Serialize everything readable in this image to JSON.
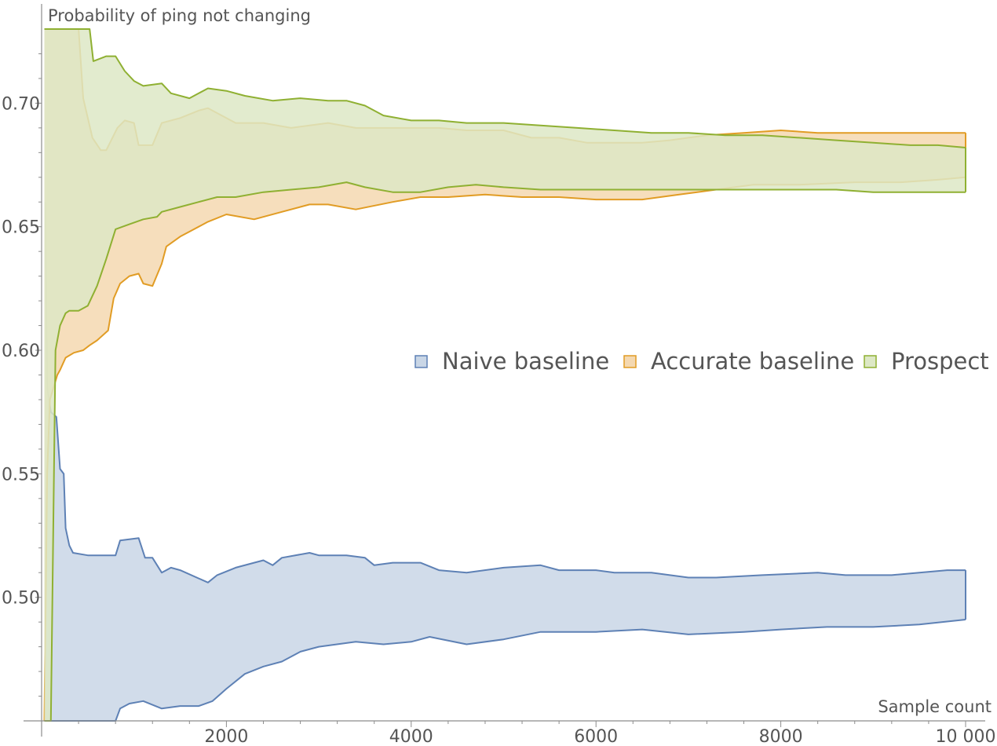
{
  "chart_data": {
    "type": "area",
    "xlabel": "Sample count",
    "ylabel": "Probability of ping not changing",
    "xlim": [
      0,
      10000
    ],
    "ylim": [
      0.45,
      0.73
    ],
    "x_ticks": [
      2000,
      4000,
      6000,
      8000,
      10000
    ],
    "x_tick_labels": [
      "2000",
      "4000",
      "6000",
      "8000",
      "10 000"
    ],
    "y_ticks": [
      0.5,
      0.55,
      0.6,
      0.65,
      0.7
    ],
    "y_tick_labels": [
      "0.50",
      "0.55",
      "0.60",
      "0.65",
      "0.70"
    ],
    "legend_position": "right-middle",
    "grid": false,
    "series": [
      {
        "name": "Naive baseline",
        "color": "#5e81b5",
        "fill": "#c9d6e6",
        "upper": [
          [
            40,
            0.66
          ],
          [
            60,
            0.585
          ],
          [
            100,
            0.575
          ],
          [
            160,
            0.573
          ],
          [
            200,
            0.552
          ],
          [
            240,
            0.55
          ],
          [
            260,
            0.528
          ],
          [
            300,
            0.521
          ],
          [
            340,
            0.518
          ],
          [
            500,
            0.517
          ],
          [
            800,
            0.517
          ],
          [
            850,
            0.523
          ],
          [
            1050,
            0.524
          ],
          [
            1120,
            0.516
          ],
          [
            1200,
            0.516
          ],
          [
            1300,
            0.51
          ],
          [
            1400,
            0.512
          ],
          [
            1500,
            0.511
          ],
          [
            1800,
            0.506
          ],
          [
            1900,
            0.509
          ],
          [
            2100,
            0.512
          ],
          [
            2300,
            0.514
          ],
          [
            2400,
            0.515
          ],
          [
            2500,
            0.513
          ],
          [
            2600,
            0.516
          ],
          [
            2900,
            0.518
          ],
          [
            3000,
            0.517
          ],
          [
            3300,
            0.517
          ],
          [
            3500,
            0.516
          ],
          [
            3600,
            0.513
          ],
          [
            3800,
            0.514
          ],
          [
            4000,
            0.514
          ],
          [
            4100,
            0.514
          ],
          [
            4300,
            0.511
          ],
          [
            4600,
            0.51
          ],
          [
            5000,
            0.512
          ],
          [
            5400,
            0.513
          ],
          [
            5600,
            0.511
          ],
          [
            6000,
            0.511
          ],
          [
            6200,
            0.51
          ],
          [
            6600,
            0.51
          ],
          [
            7000,
            0.508
          ],
          [
            7300,
            0.508
          ],
          [
            7800,
            0.509
          ],
          [
            8400,
            0.51
          ],
          [
            8700,
            0.509
          ],
          [
            9200,
            0.509
          ],
          [
            9500,
            0.51
          ],
          [
            9800,
            0.511
          ],
          [
            10000,
            0.511
          ]
        ],
        "lower": [
          [
            40,
            0.45
          ],
          [
            800,
            0.45
          ],
          [
            850,
            0.455
          ],
          [
            950,
            0.457
          ],
          [
            1100,
            0.458
          ],
          [
            1300,
            0.455
          ],
          [
            1500,
            0.456
          ],
          [
            1700,
            0.456
          ],
          [
            1850,
            0.458
          ],
          [
            2000,
            0.463
          ],
          [
            2200,
            0.469
          ],
          [
            2400,
            0.472
          ],
          [
            2600,
            0.474
          ],
          [
            2800,
            0.478
          ],
          [
            3000,
            0.48
          ],
          [
            3400,
            0.482
          ],
          [
            3700,
            0.481
          ],
          [
            4000,
            0.482
          ],
          [
            4200,
            0.484
          ],
          [
            4600,
            0.481
          ],
          [
            5000,
            0.483
          ],
          [
            5400,
            0.486
          ],
          [
            6000,
            0.486
          ],
          [
            6500,
            0.487
          ],
          [
            7000,
            0.485
          ],
          [
            7600,
            0.486
          ],
          [
            8000,
            0.487
          ],
          [
            8500,
            0.488
          ],
          [
            9000,
            0.488
          ],
          [
            9500,
            0.489
          ],
          [
            10000,
            0.491
          ]
        ]
      },
      {
        "name": "Accurate baseline",
        "color": "#e19c24",
        "fill": "#f4d8b0",
        "upper": [
          [
            30,
            0.73
          ],
          [
            400,
            0.73
          ],
          [
            450,
            0.702
          ],
          [
            550,
            0.686
          ],
          [
            640,
            0.681
          ],
          [
            700,
            0.681
          ],
          [
            820,
            0.69
          ],
          [
            900,
            0.693
          ],
          [
            1000,
            0.692
          ],
          [
            1050,
            0.683
          ],
          [
            1200,
            0.683
          ],
          [
            1300,
            0.692
          ],
          [
            1500,
            0.694
          ],
          [
            1700,
            0.697
          ],
          [
            1800,
            0.698
          ],
          [
            1900,
            0.696
          ],
          [
            2100,
            0.692
          ],
          [
            2400,
            0.692
          ],
          [
            2700,
            0.69
          ],
          [
            2900,
            0.691
          ],
          [
            3100,
            0.692
          ],
          [
            3400,
            0.69
          ],
          [
            3600,
            0.69
          ],
          [
            4000,
            0.69
          ],
          [
            4300,
            0.69
          ],
          [
            4600,
            0.689
          ],
          [
            5000,
            0.689
          ],
          [
            5300,
            0.686
          ],
          [
            5600,
            0.686
          ],
          [
            5900,
            0.684
          ],
          [
            6200,
            0.684
          ],
          [
            6500,
            0.684
          ],
          [
            6800,
            0.685
          ],
          [
            7000,
            0.686
          ],
          [
            7200,
            0.687
          ],
          [
            7600,
            0.688
          ],
          [
            8000,
            0.689
          ],
          [
            8400,
            0.688
          ],
          [
            8700,
            0.688
          ],
          [
            9000,
            0.688
          ],
          [
            9300,
            0.688
          ],
          [
            9600,
            0.688
          ],
          [
            10000,
            0.688
          ]
        ],
        "lower": [
          [
            30,
            0.45
          ],
          [
            60,
            0.55
          ],
          [
            90,
            0.58
          ],
          [
            130,
            0.585
          ],
          [
            170,
            0.59
          ],
          [
            200,
            0.592
          ],
          [
            260,
            0.597
          ],
          [
            350,
            0.599
          ],
          [
            450,
            0.6
          ],
          [
            520,
            0.602
          ],
          [
            600,
            0.604
          ],
          [
            720,
            0.608
          ],
          [
            780,
            0.621
          ],
          [
            850,
            0.627
          ],
          [
            950,
            0.63
          ],
          [
            1050,
            0.631
          ],
          [
            1100,
            0.627
          ],
          [
            1200,
            0.626
          ],
          [
            1300,
            0.635
          ],
          [
            1350,
            0.642
          ],
          [
            1500,
            0.646
          ],
          [
            1600,
            0.648
          ],
          [
            1800,
            0.652
          ],
          [
            2000,
            0.655
          ],
          [
            2300,
            0.653
          ],
          [
            2600,
            0.656
          ],
          [
            2900,
            0.659
          ],
          [
            3100,
            0.659
          ],
          [
            3400,
            0.657
          ],
          [
            3800,
            0.66
          ],
          [
            4100,
            0.662
          ],
          [
            4400,
            0.662
          ],
          [
            4800,
            0.663
          ],
          [
            5200,
            0.662
          ],
          [
            5600,
            0.662
          ],
          [
            6000,
            0.661
          ],
          [
            6500,
            0.661
          ],
          [
            6900,
            0.663
          ],
          [
            7300,
            0.665
          ],
          [
            7700,
            0.667
          ],
          [
            8200,
            0.667
          ],
          [
            8800,
            0.668
          ],
          [
            9300,
            0.668
          ],
          [
            9700,
            0.669
          ],
          [
            10000,
            0.67
          ]
        ]
      },
      {
        "name": "Prospect",
        "color": "#8fb032",
        "fill": "#dde8c5",
        "upper": [
          [
            30,
            0.73
          ],
          [
            520,
            0.73
          ],
          [
            560,
            0.717
          ],
          [
            700,
            0.719
          ],
          [
            800,
            0.719
          ],
          [
            900,
            0.713
          ],
          [
            1000,
            0.709
          ],
          [
            1100,
            0.707
          ],
          [
            1300,
            0.708
          ],
          [
            1400,
            0.704
          ],
          [
            1600,
            0.702
          ],
          [
            1800,
            0.706
          ],
          [
            2000,
            0.705
          ],
          [
            2200,
            0.703
          ],
          [
            2500,
            0.701
          ],
          [
            2800,
            0.702
          ],
          [
            3100,
            0.701
          ],
          [
            3300,
            0.701
          ],
          [
            3500,
            0.699
          ],
          [
            3700,
            0.695
          ],
          [
            4000,
            0.693
          ],
          [
            4300,
            0.693
          ],
          [
            4600,
            0.692
          ],
          [
            5000,
            0.692
          ],
          [
            5400,
            0.691
          ],
          [
            5800,
            0.69
          ],
          [
            6200,
            0.689
          ],
          [
            6600,
            0.688
          ],
          [
            7000,
            0.688
          ],
          [
            7400,
            0.687
          ],
          [
            7800,
            0.687
          ],
          [
            8200,
            0.686
          ],
          [
            8600,
            0.685
          ],
          [
            9000,
            0.684
          ],
          [
            9400,
            0.683
          ],
          [
            9700,
            0.683
          ],
          [
            10000,
            0.682
          ]
        ],
        "lower": [
          [
            30,
            0.45
          ],
          [
            100,
            0.45
          ],
          [
            150,
            0.6
          ],
          [
            200,
            0.61
          ],
          [
            260,
            0.615
          ],
          [
            300,
            0.616
          ],
          [
            400,
            0.616
          ],
          [
            500,
            0.618
          ],
          [
            600,
            0.626
          ],
          [
            700,
            0.637
          ],
          [
            800,
            0.649
          ],
          [
            950,
            0.651
          ],
          [
            1100,
            0.653
          ],
          [
            1250,
            0.654
          ],
          [
            1300,
            0.656
          ],
          [
            1500,
            0.658
          ],
          [
            1700,
            0.66
          ],
          [
            1900,
            0.662
          ],
          [
            2100,
            0.662
          ],
          [
            2400,
            0.664
          ],
          [
            2700,
            0.665
          ],
          [
            3000,
            0.666
          ],
          [
            3300,
            0.668
          ],
          [
            3500,
            0.666
          ],
          [
            3800,
            0.664
          ],
          [
            4100,
            0.664
          ],
          [
            4400,
            0.666
          ],
          [
            4700,
            0.667
          ],
          [
            5000,
            0.666
          ],
          [
            5400,
            0.665
          ],
          [
            5800,
            0.665
          ],
          [
            6200,
            0.665
          ],
          [
            6600,
            0.665
          ],
          [
            7000,
            0.665
          ],
          [
            7400,
            0.665
          ],
          [
            7800,
            0.665
          ],
          [
            8200,
            0.665
          ],
          [
            8600,
            0.665
          ],
          [
            9000,
            0.664
          ],
          [
            9400,
            0.664
          ],
          [
            9700,
            0.664
          ],
          [
            10000,
            0.664
          ]
        ]
      }
    ]
  }
}
